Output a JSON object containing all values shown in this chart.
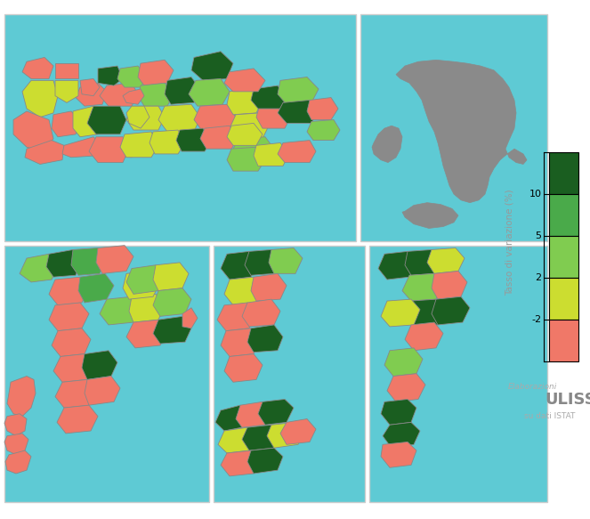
{
  "background_color": "#5ecad4",
  "figure_bg": "#ffffff",
  "border_color": "#aaaaaa",
  "legend_colors": [
    "#1a5e20",
    "#4aaa4a",
    "#80cc50",
    "#ccdd30",
    "#f07868"
  ],
  "legend_ylabel": "Tasso di variazione (%)",
  "elaborazioni_text": "Elaborazioni",
  "ulisse_text": "ULISSE",
  "istat_text": "su dati ISTAT",
  "gray_color": "#8a8a8a",
  "map_colors": {
    "dark_green": "#1a5e20",
    "medium_green": "#4aaa4a",
    "light_green": "#80cc50",
    "yellow_green": "#ccdd30",
    "salmon": "#f07868"
  }
}
